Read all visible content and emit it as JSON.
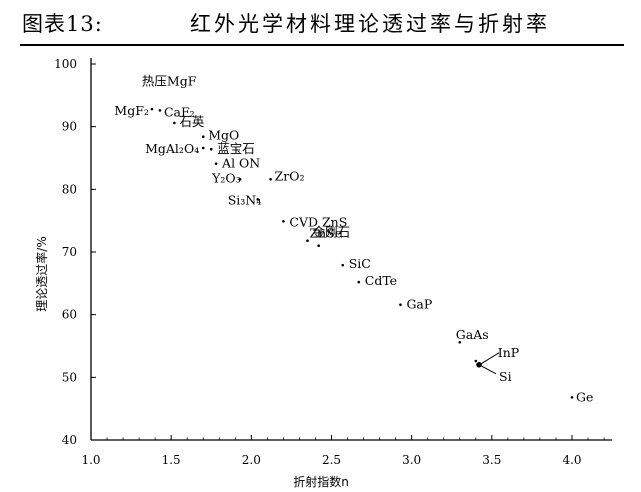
{
  "figure": {
    "label": "图表13:",
    "title": "红外光学材料理论透过率与折射率"
  },
  "chart_data": {
    "type": "scatter",
    "title": "红外光学材料理论透过率与折射率",
    "xlabel": "折射指数n",
    "ylabel": "理论透过率/%",
    "xlim": [
      1.0,
      4.0
    ],
    "ylim": [
      40,
      100
    ],
    "xticks": [
      "1.0",
      "1.5",
      "2.0",
      "2.5",
      "3.0",
      "3.5",
      "4.0"
    ],
    "yticks": [
      "40",
      "50",
      "60",
      "70",
      "80",
      "90",
      "100"
    ],
    "grid": false,
    "points": [
      {
        "label": "热压MgF",
        "x": 1.38,
        "y": 95.6
      },
      {
        "label": "MgF₂",
        "x": 1.38,
        "y": 92.8
      },
      {
        "label": "CaF₂",
        "x": 1.43,
        "y": 92.6
      },
      {
        "label": "石英",
        "x": 1.52,
        "y": 90.6
      },
      {
        "label": "MgO",
        "x": 1.7,
        "y": 88.4
      },
      {
        "label": "MgAl₂O₄",
        "x": 1.7,
        "y": 86.6
      },
      {
        "label": "蓝宝石",
        "x": 1.75,
        "y": 86.4
      },
      {
        "label": "Al ON",
        "x": 1.78,
        "y": 84.1
      },
      {
        "label": "Y₂O₃",
        "x": 1.93,
        "y": 81.6
      },
      {
        "label": "ZrO₂",
        "x": 2.12,
        "y": 81.6
      },
      {
        "label": "Si₃N₄",
        "x": 2.04,
        "y": 78.4
      },
      {
        "label": "CVD ZnS",
        "x": 2.2,
        "y": 74.9
      },
      {
        "label": "ZnSe",
        "x": 2.35,
        "y": 71.8
      },
      {
        "label": "金刚石",
        "x": 2.42,
        "y": 71.0
      },
      {
        "label": "SiC",
        "x": 2.57,
        "y": 67.9
      },
      {
        "label": "CdTe",
        "x": 2.67,
        "y": 65.2
      },
      {
        "label": "GaP",
        "x": 2.93,
        "y": 61.6
      },
      {
        "label": "GaAs",
        "x": 3.3,
        "y": 55.6
      },
      {
        "label": "InP",
        "x": 3.4,
        "y": 52.6
      },
      {
        "label": "Si",
        "x": 3.42,
        "y": 52.0
      },
      {
        "label": "Ge",
        "x": 4.0,
        "y": 46.8
      }
    ]
  }
}
